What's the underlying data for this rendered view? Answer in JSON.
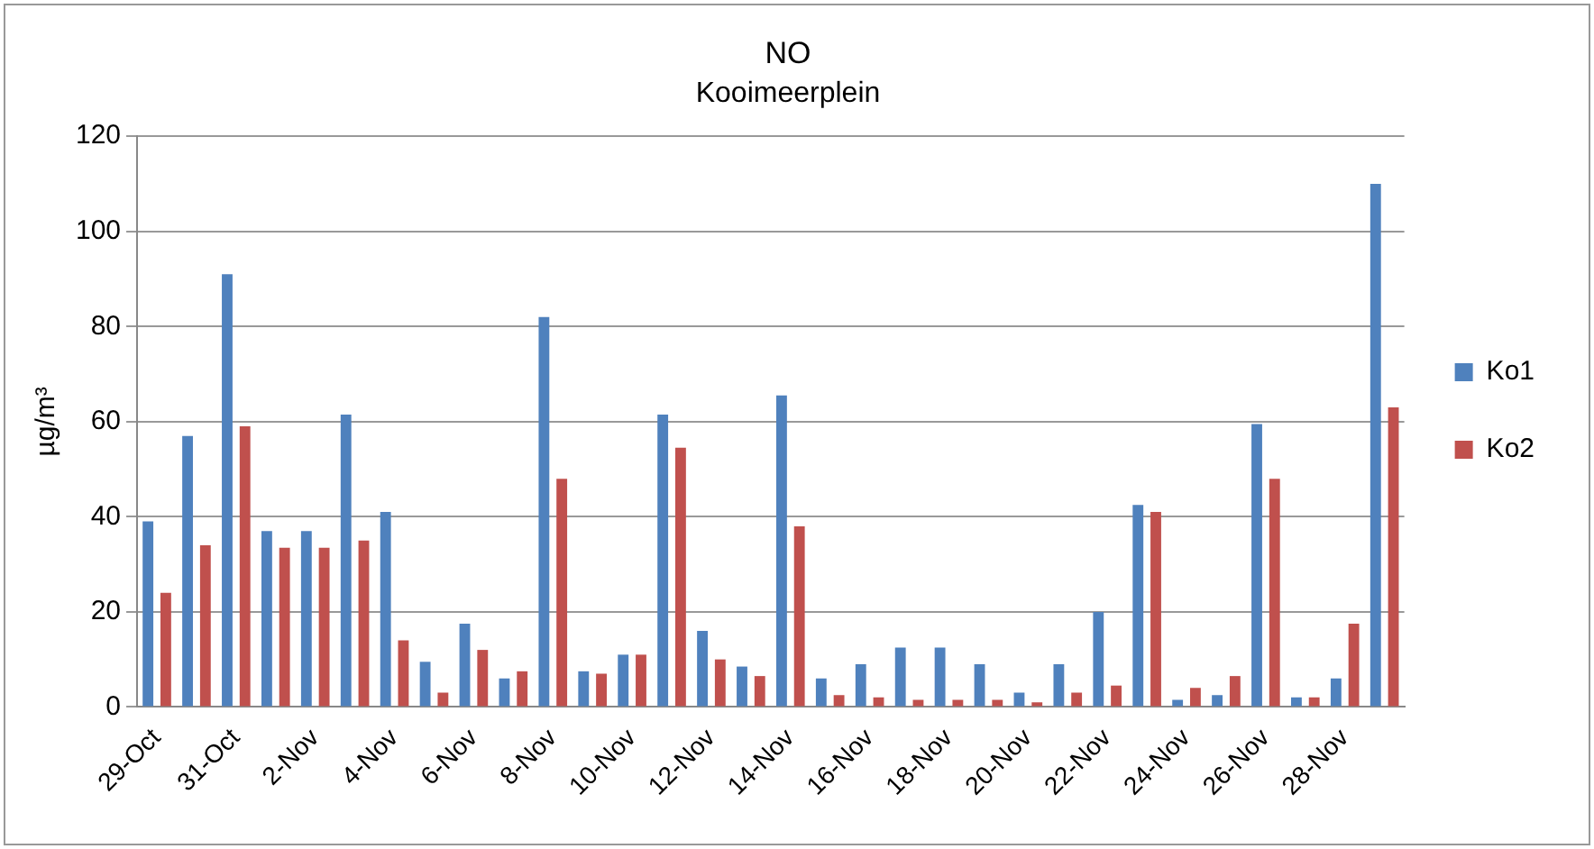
{
  "chart_data": {
    "type": "bar",
    "title": "NO",
    "subtitle": "Kooimeerplein",
    "ylabel": "µg/m³",
    "categories": [
      "29-Oct",
      null,
      "31-Oct",
      null,
      "2-Nov",
      null,
      "4-Nov",
      null,
      "6-Nov",
      null,
      "8-Nov",
      null,
      "10-Nov",
      null,
      "12-Nov",
      null,
      "14-Nov",
      null,
      "16-Nov",
      null,
      "18-Nov",
      null,
      "20-Nov",
      null,
      "22-Nov",
      null,
      "24-Nov",
      null,
      "26-Nov",
      null,
      "28-Nov",
      null
    ],
    "series": [
      {
        "name": "Ko1",
        "color": "#4f81bd",
        "values": [
          39,
          57,
          91,
          37,
          37,
          61.5,
          41,
          9.5,
          17.5,
          6,
          82,
          7.5,
          11,
          61.5,
          16,
          8.5,
          65.5,
          6,
          9,
          12.5,
          12.5,
          9,
          3,
          9,
          20,
          42.5,
          1.5,
          2.5,
          59.5,
          2,
          6,
          110
        ]
      },
      {
        "name": "Ko2",
        "color": "#c0504d",
        "values": [
          24,
          34,
          59,
          33.5,
          33.5,
          35,
          14,
          3,
          12,
          7.5,
          48,
          7,
          11,
          54.5,
          10,
          6.5,
          38,
          2.5,
          2,
          1.5,
          1.5,
          1.5,
          1,
          3,
          4.5,
          41,
          4,
          6.5,
          48,
          2,
          17.5,
          63
        ]
      }
    ],
    "ylim": [
      0,
      120
    ],
    "yticks": [
      0,
      20,
      40,
      60,
      80,
      100,
      120
    ],
    "grid": "y",
    "legend": "right"
  }
}
